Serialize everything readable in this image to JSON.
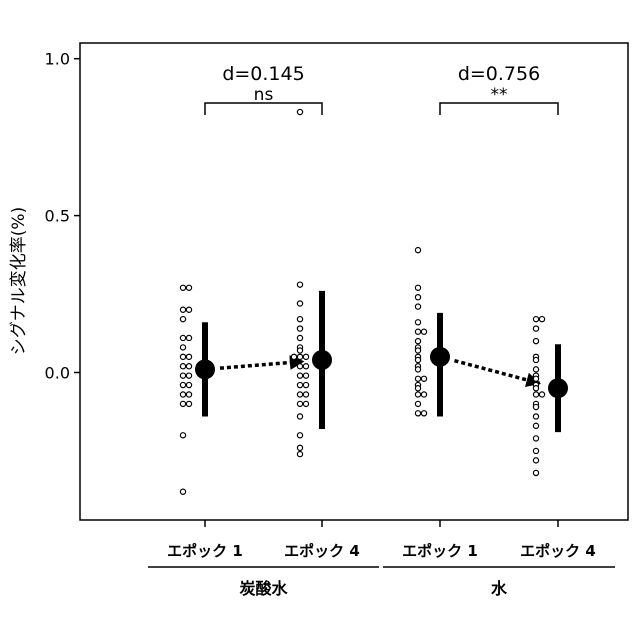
{
  "chart_data": {
    "type": "scatter",
    "ylabel": "シグナル変化率(%)",
    "ylim": [
      -0.47,
      1.05
    ],
    "yticks": [
      {
        "value": 1.0,
        "label": "1.0"
      },
      {
        "value": 0.5,
        "label": "0.5"
      },
      {
        "value": 0.0,
        "label": "0.0"
      }
    ],
    "categories": [
      "エポック 1",
      "エポック 4",
      "エポック 1",
      "エポック 4"
    ],
    "groups": [
      {
        "label": "炭酸水",
        "from": 0,
        "to": 1
      },
      {
        "label": "水",
        "from": 2,
        "to": 3
      }
    ],
    "series": [
      {
        "mean": 0.01,
        "lower": -0.14,
        "upper": 0.16,
        "points": [
          0.27,
          0.27,
          0.2,
          0.2,
          0.17,
          0.11,
          0.11,
          0.08,
          0.05,
          0.05,
          0.02,
          0.02,
          -0.01,
          -0.01,
          -0.04,
          -0.04,
          -0.07,
          -0.07,
          -0.1,
          -0.1,
          -0.2,
          -0.38
        ]
      },
      {
        "mean": 0.04,
        "lower": -0.18,
        "upper": 0.26,
        "points": [
          0.83,
          0.28,
          0.22,
          0.17,
          0.14,
          0.11,
          0.08,
          0.07,
          0.05,
          0.05,
          0.05,
          0.02,
          0.02,
          -0.01,
          -0.01,
          -0.04,
          -0.04,
          -0.07,
          -0.07,
          -0.1,
          -0.1,
          -0.14,
          -0.2,
          -0.24,
          -0.26
        ]
      },
      {
        "mean": 0.05,
        "lower": -0.14,
        "upper": 0.19,
        "points": [
          0.39,
          0.27,
          0.24,
          0.21,
          0.16,
          0.13,
          0.13,
          0.1,
          0.08,
          0.07,
          0.05,
          0.04,
          0.02,
          0.01,
          -0.02,
          -0.02,
          -0.04,
          -0.05,
          -0.07,
          -0.07,
          -0.1,
          -0.13,
          -0.13
        ]
      },
      {
        "mean": -0.05,
        "lower": -0.19,
        "upper": 0.09,
        "points": [
          0.17,
          0.17,
          0.14,
          0.1,
          0.05,
          0.04,
          0.01,
          -0.01,
          -0.02,
          -0.04,
          -0.05,
          -0.07,
          -0.07,
          -0.1,
          -0.11,
          -0.14,
          -0.17,
          -0.21,
          -0.25,
          -0.28,
          -0.32
        ]
      }
    ],
    "arrows": [
      {
        "from": 0,
        "to": 1
      },
      {
        "from": 2,
        "to": 3
      }
    ],
    "comparisons": [
      {
        "from": 0,
        "to": 1,
        "effect": "d=0.145",
        "significance": "ns"
      },
      {
        "from": 2,
        "to": 3,
        "effect": "d=0.756",
        "significance": "**"
      }
    ]
  }
}
